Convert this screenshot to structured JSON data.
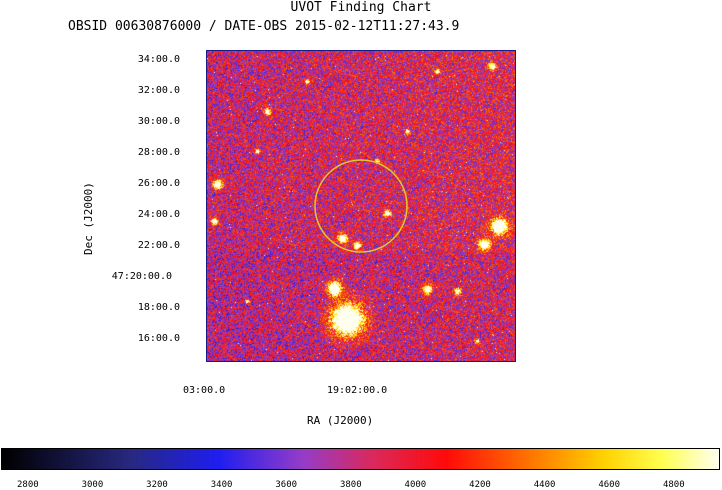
{
  "title": "UVOT Finding Chart",
  "subtitle": "OBSID 00630876000 / DATE-OBS 2015-02-12T11:27:43.9",
  "axes": {
    "y_title": "Dec (J2000)",
    "x_title": "RA (J2000)",
    "dec_ticks": [
      "34:00.0",
      "32:00.0",
      "30:00.0",
      "28:00.0",
      "26:00.0",
      "24:00.0",
      "22:00.0",
      "47:20:00.0",
      "18:00.0",
      "16:00.0"
    ],
    "ra_ticks": [
      "03:00.0",
      "19:02:00.0"
    ]
  },
  "colorbar": {
    "ticks": [
      "2800",
      "3000",
      "3200",
      "3400",
      "3600",
      "3800",
      "4000",
      "4200",
      "4400",
      "4600",
      "4800"
    ],
    "range": [
      2720,
      4940
    ]
  },
  "colors": {
    "circle": "#e0c830",
    "frame": "#1a1a8a"
  }
}
